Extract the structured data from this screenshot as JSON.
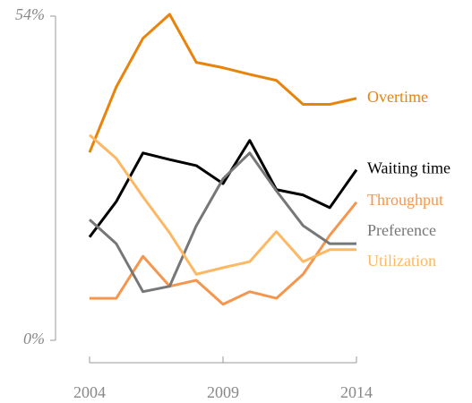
{
  "chart_data": {
    "type": "line",
    "x": [
      2004,
      2005,
      2006,
      2007,
      2008,
      2009,
      2010,
      2011,
      2012,
      2013,
      2014
    ],
    "xlim": [
      2004,
      2014
    ],
    "xticks": [
      2004,
      2009,
      2014
    ],
    "ylim": [
      0,
      54
    ],
    "yticks": [
      {
        "value": 0,
        "label": "0%"
      },
      {
        "value": 54,
        "label": "54%"
      }
    ],
    "series": [
      {
        "name": "Overtime",
        "color": "#e8830c",
        "values": [
          31.3,
          42.2,
          50.3,
          54.3,
          46.3,
          45.4,
          44.3,
          43.3,
          39.3,
          39.3,
          40.3
        ]
      },
      {
        "name": "Waiting time",
        "color": "#000000",
        "values": [
          17.2,
          23.1,
          31.2,
          30.1,
          29.1,
          26.1,
          33.3,
          25.1,
          24.2,
          22.1,
          28.4
        ]
      },
      {
        "name": "Throughput",
        "color": "#f5964f",
        "values": [
          7.0,
          7.0,
          14.0,
          9.0,
          10.0,
          6.0,
          8.1,
          7.0,
          11.0,
          17.5,
          23.0
        ]
      },
      {
        "name": "Preference",
        "color": "#777777",
        "values": [
          20.1,
          16.1,
          8.1,
          9.0,
          19.1,
          26.9,
          31.2,
          24.9,
          19.1,
          16.1,
          16.1
        ]
      },
      {
        "name": "Utilization",
        "color": "#fdb863",
        "values": [
          34.2,
          30.3,
          23.9,
          17.9,
          11.0,
          12.1,
          13.1,
          18.1,
          13.1,
          15.1,
          15.1
        ]
      }
    ]
  }
}
